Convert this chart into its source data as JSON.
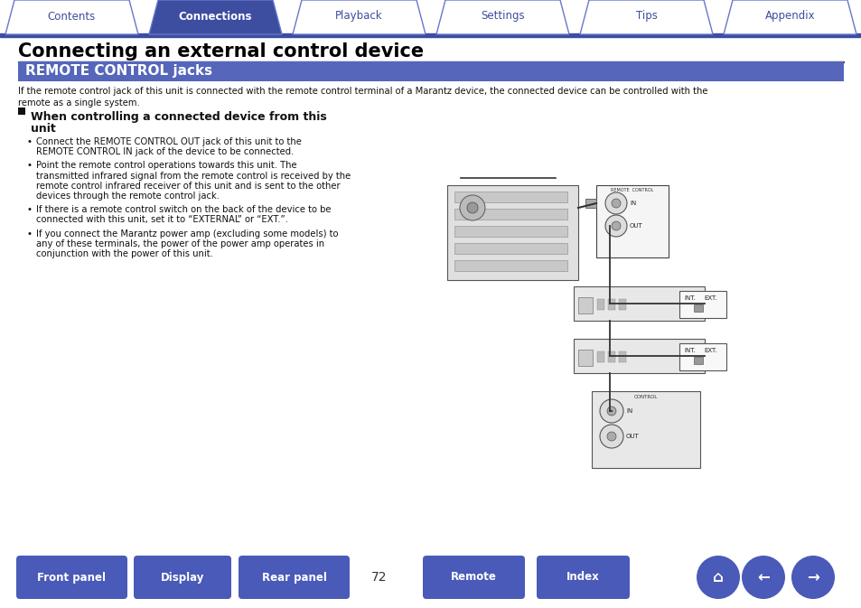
{
  "bg_color": "#ffffff",
  "tab_color_active": "#3d4da0",
  "tab_color_inactive": "#ffffff",
  "tab_border_color": "#6677cc",
  "tab_labels": [
    "Contents",
    "Connections",
    "Playback",
    "Settings",
    "Tips",
    "Appendix"
  ],
  "tab_active_index": 1,
  "tab_text_color_active": "#ffffff",
  "tab_text_color_inactive": "#3d4da0",
  "nav_bar_color": "#3d4da0",
  "section_header_bg": "#5566bb",
  "section_header_text": "REMOTE CONTROL jacks",
  "section_header_text_color": "#ffffff",
  "page_title": "Connecting an external control device",
  "page_title_color": "#000000",
  "body_text_color": "#111111",
  "intro_text": "If the remote control jack of this unit is connected with the remote control terminal of a Marantz device, the connected device can be controlled with the\nremote as a single system.",
  "subsection_title": "When controlling a connected device from this unit",
  "bullet_points": [
    "Connect the REMOTE CONTROL OUT jack of this unit to the\nREMOTE CONTROL IN jack of the device to be connected.",
    "Point the remote control operations towards this unit. The\ntransmitted infrared signal from the remote control is received by the\nremote control infrared receiver of this unit and is sent to the other\ndevices through the remote control jack.",
    "If there is a remote control switch on the back of the device to be\nconnected with this unit, set it to “EXTERNAL” or “EXT.”.",
    "If you connect the Marantz power amp (excluding some models) to\nany of these terminals, the power of the power amp operates in\nconjunction with the power of this unit."
  ],
  "bottom_buttons": [
    "Front panel",
    "Display",
    "Rear panel",
    "Remote",
    "Index"
  ],
  "page_number": "72",
  "bottom_btn_color": "#4a5ab8",
  "bottom_btn_text_color": "#ffffff"
}
